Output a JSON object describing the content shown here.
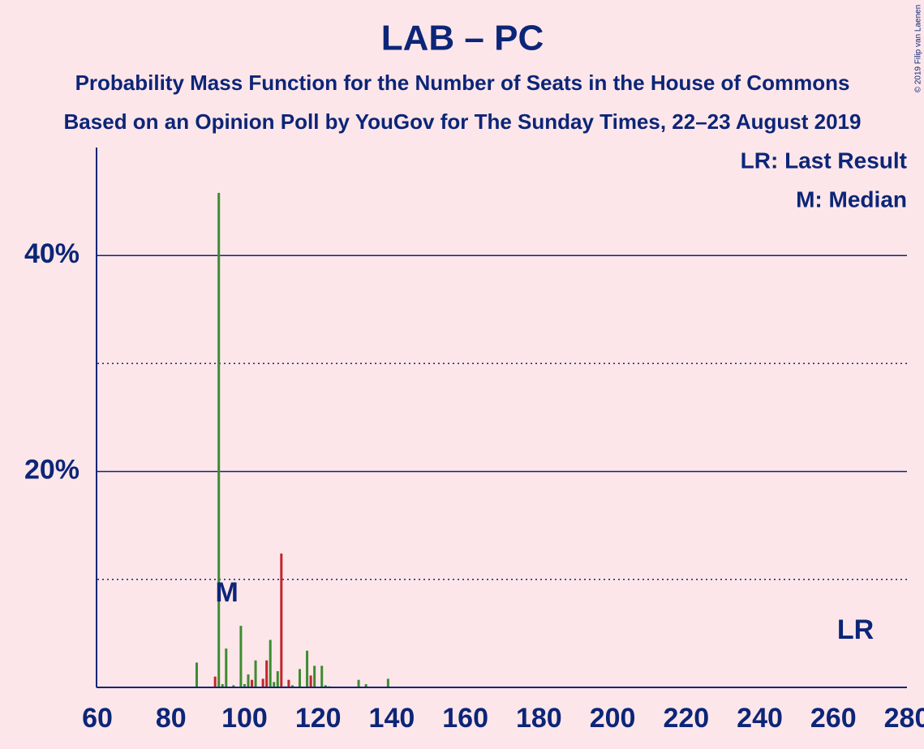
{
  "chart_data": {
    "type": "bar",
    "title": "LAB – PC",
    "subtitle": [
      "Probability Mass Function for the Number of Seats in the House of Commons",
      "Based on an Opinion Poll by YouGov for The Sunday Times, 22–23 August 2019"
    ],
    "copyright": "© 2019 Filip van Laenen",
    "legend": [
      "LR: Last Result",
      "M: Median"
    ],
    "x": [
      87,
      92,
      93,
      94,
      95,
      97,
      99,
      100,
      101,
      102,
      103,
      105,
      106,
      107,
      108,
      109,
      110,
      111,
      112,
      113,
      115,
      117,
      118,
      119,
      121,
      122,
      123,
      131,
      133,
      139
    ],
    "values": [
      2.3,
      1.0,
      45.8,
      0.3,
      3.6,
      0.2,
      5.7,
      0.3,
      1.2,
      0.7,
      2.5,
      0.8,
      2.5,
      4.4,
      0.5,
      1.5,
      12.4,
      0.1,
      0.7,
      0.2,
      1.7,
      3.4,
      1.1,
      2.0,
      2.0,
      0.2,
      0.1,
      0.7,
      0.3,
      0.8
    ],
    "colors": [
      "#3d8c2e",
      "#c0262d",
      "#3d8c2e",
      "#3d8c2e",
      "#3d8c2e",
      "#3d8c2e",
      "#3d8c2e",
      "#3d8c2e",
      "#3d8c2e",
      "#c0262d",
      "#3d8c2e",
      "#c0262d",
      "#c0262d",
      "#3d8c2e",
      "#3d8c2e",
      "#3d8c2e",
      "#c0262d",
      "#3d8c2e",
      "#c0262d",
      "#3d8c2e",
      "#3d8c2e",
      "#3d8c2e",
      "#c0262d",
      "#3d8c2e",
      "#3d8c2e",
      "#3d8c2e",
      "#3d8c2e",
      "#3d8c2e",
      "#3d8c2e",
      "#3d8c2e"
    ],
    "xlim": [
      60,
      280
    ],
    "xticks": [
      60,
      80,
      100,
      120,
      140,
      160,
      180,
      200,
      220,
      240,
      260,
      280
    ],
    "ylim": [
      0,
      50
    ],
    "yticks": [
      {
        "value": 20,
        "label": "20%"
      },
      {
        "value": 40,
        "label": "40%"
      }
    ],
    "minor_yticks": [
      10,
      30
    ],
    "grid": true,
    "median": {
      "label": "M",
      "x": 93
    },
    "last_result": {
      "label": "LR",
      "x": 266
    }
  }
}
